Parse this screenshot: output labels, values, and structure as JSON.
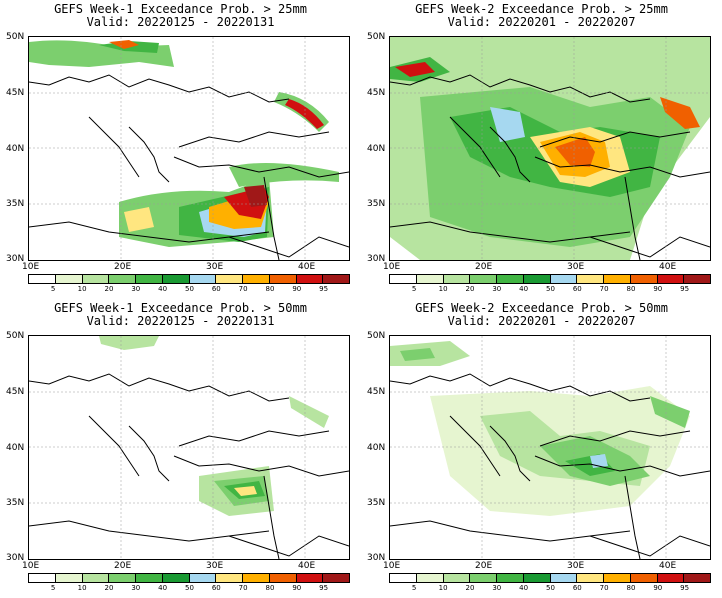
{
  "panels": [
    {
      "title": "GEFS Week-1 Exceedance Prob. > 25mm",
      "valid": "Valid: 20220125 - 20220131"
    },
    {
      "title": "GEFS Week-2 Exceedance Prob. > 25mm",
      "valid": "Valid: 20220201 - 20220207"
    },
    {
      "title": "GEFS Week-1 Exceedance Prob. > 50mm",
      "valid": "Valid: 20220125 - 20220131"
    },
    {
      "title": "GEFS Week-2 Exceedance Prob. > 50mm",
      "valid": "Valid: 20220201 - 20220207"
    }
  ],
  "lat_labels": [
    "50N",
    "45N",
    "40N",
    "35N",
    "30N"
  ],
  "lon_labels": [
    "10E",
    "20E",
    "30E",
    "40E"
  ],
  "colorbar": {
    "labels": [
      "5",
      "10",
      "20",
      "30",
      "40",
      "50",
      "60",
      "70",
      "80",
      "90",
      "95"
    ],
    "colors": [
      "#ffffff",
      "#e6f5d0",
      "#b7e4a0",
      "#7ccf6e",
      "#41b543",
      "#1a9a33",
      "#a6d8f0",
      "#ffe680",
      "#ffb000",
      "#f06000",
      "#d01010",
      "#a01818"
    ]
  }
}
